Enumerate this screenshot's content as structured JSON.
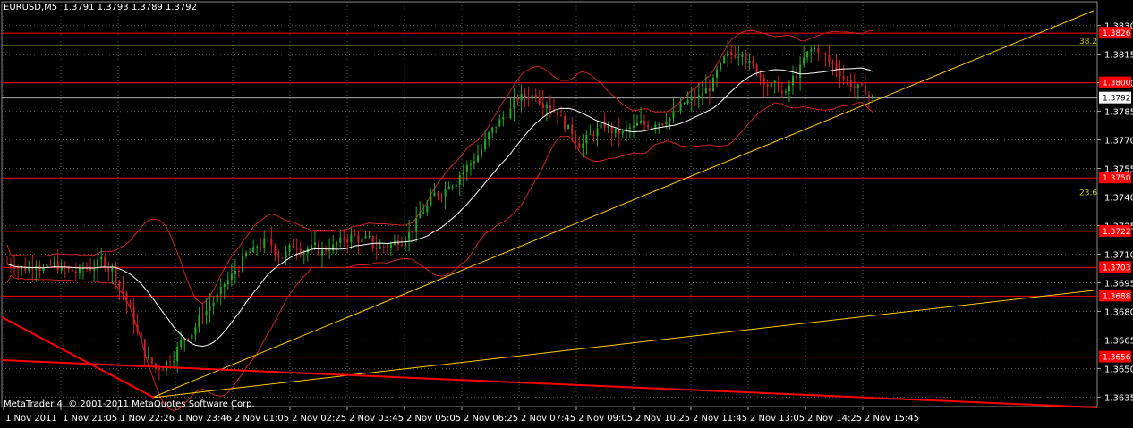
{
  "window": {
    "symbol_info": "EURUSD,M5",
    "ohlc": "1.3791 1.3793 1.3789 1.3792",
    "copyright": "MetaTrader 4, © 2001-2011 MetaQuotes Software Corp."
  },
  "colors": {
    "background": "#000000",
    "grid": "#5a5a5a",
    "bull": "#22aa22",
    "bear": "#cc2222",
    "sma": "#ffffff",
    "bands": "#cc2222",
    "fib": "#cccc00",
    "level": "#ff0000",
    "trend": "#ffcc00",
    "price_tag": "#ff0000"
  },
  "chart_data": {
    "type": "candlestick",
    "symbol": "EURUSD",
    "timeframe": "M5",
    "ylim": [
      1.363,
      1.3835
    ],
    "y_ticks": [
      "1.3830",
      "1.3815",
      "1.3800",
      "1.3785",
      "1.3770",
      "1.3755",
      "1.3740",
      "1.3725",
      "1.3710",
      "1.3695",
      "1.3680",
      "1.3665",
      "1.3650",
      "1.3635"
    ],
    "x_ticks": [
      "1 Nov 2011",
      "1 Nov 21:05",
      "1 Nov 22:26",
      "1 Nov 23:46",
      "2 Nov 01:05",
      "2 Nov 02:25",
      "2 Nov 03:45",
      "2 Nov 05:05",
      "2 Nov 06:25",
      "2 Nov 07:45",
      "2 Nov 09:05",
      "2 Nov 10:25",
      "2 Nov 11:45",
      "2 Nov 13:05",
      "2 Nov 14:25",
      "2 Nov 15:45"
    ],
    "current_price": "1.3792",
    "horizontal_levels": [
      {
        "price": 1.3826,
        "label": "1.3826",
        "kind": "resistance"
      },
      {
        "price": 1.38,
        "label": "1.3800",
        "kind": "resistance"
      },
      {
        "price": 1.375,
        "label": "1.3750",
        "kind": "resistance"
      },
      {
        "price": 1.3722,
        "label": "1.3722",
        "kind": "resistance"
      },
      {
        "price": 1.3703,
        "label": "1.3703",
        "kind": "resistance"
      },
      {
        "price": 1.3688,
        "label": "1.3688",
        "kind": "resistance"
      },
      {
        "price": 1.3656,
        "label": "1.3656",
        "kind": "resistance"
      }
    ],
    "fib_levels": [
      {
        "price": 1.3826,
        "label": "38.2"
      },
      {
        "price": 1.374,
        "label": "23.6"
      }
    ],
    "close_path": [
      1.3705,
      1.3703,
      1.3706,
      1.3702,
      1.3704,
      1.3701,
      1.37,
      1.3703,
      1.3707,
      1.3702,
      1.369,
      1.3675,
      1.3658,
      1.365,
      1.3653,
      1.366,
      1.3668,
      1.3676,
      1.3683,
      1.369,
      1.3698,
      1.3706,
      1.3711,
      1.3716,
      1.3712,
      1.371,
      1.3715,
      1.3713,
      1.3712,
      1.3714,
      1.3716,
      1.3719,
      1.3717,
      1.3715,
      1.3714,
      1.3716,
      1.372,
      1.3726,
      1.3735,
      1.3742,
      1.3748,
      1.3752,
      1.3758,
      1.3765,
      1.3775,
      1.3782,
      1.3789,
      1.3793,
      1.3795,
      1.379,
      1.3785,
      1.3775,
      1.3768,
      1.3772,
      1.3777,
      1.3775,
      1.3773,
      1.3776,
      1.3778,
      1.378,
      1.3782,
      1.3785,
      1.379,
      1.3792,
      1.3798,
      1.3808,
      1.3815,
      1.3818,
      1.3808,
      1.3802,
      1.3798,
      1.3793,
      1.3805,
      1.3815,
      1.3818,
      1.3811,
      1.3806,
      1.38,
      1.3796,
      1.3792
    ]
  }
}
